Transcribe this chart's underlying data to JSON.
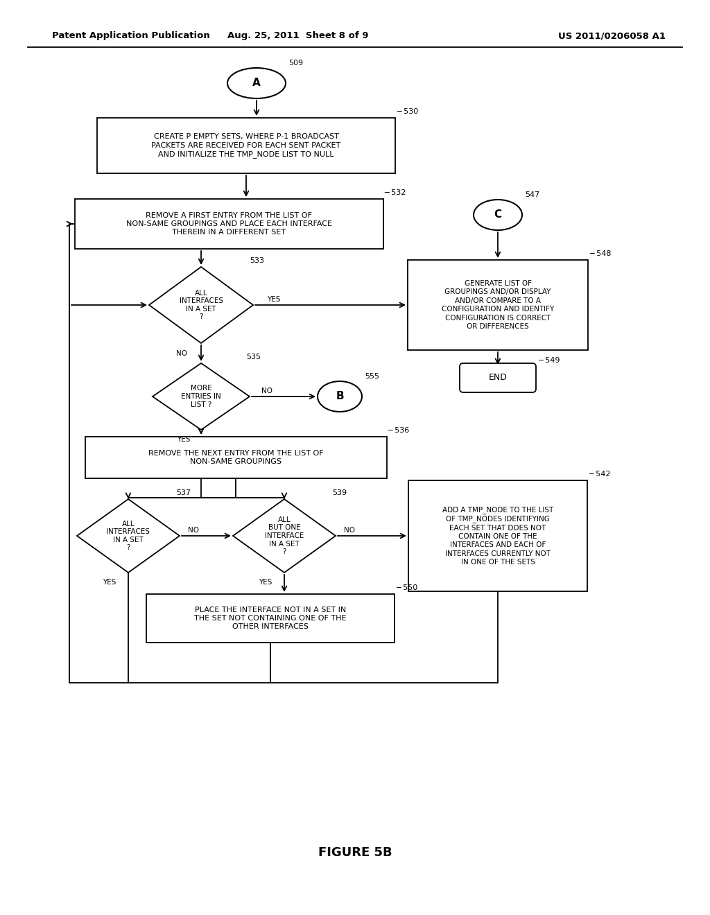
{
  "title": "FIGURE 5B",
  "header_left": "Patent Application Publication",
  "header_mid": "Aug. 25, 2011  Sheet 8 of 9",
  "header_right": "US 2011/0206058 A1",
  "bg_color": "#ffffff"
}
